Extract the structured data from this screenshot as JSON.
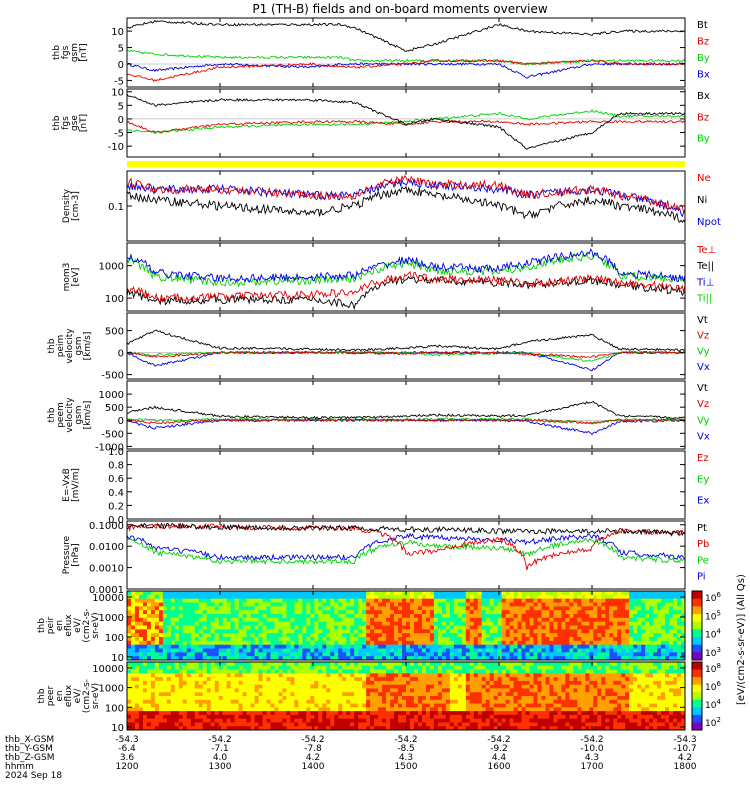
{
  "title": "P1 (TH-B) fields and on-board moments overview",
  "colors": {
    "black": "#000000",
    "red": "#e00000",
    "green": "#00d000",
    "blue": "#0000e0",
    "yellow": "#ffff00",
    "frame": "#000000"
  },
  "x_axis": {
    "ticks": [
      "1200",
      "1300",
      "1400",
      "1500",
      "1600",
      "1700",
      "1800"
    ],
    "rows": [
      {
        "label": "thb_X-GSM",
        "values": [
          "-54.3",
          "-54.2",
          "-54.2",
          "-54.2",
          "-54.2",
          "-54.2",
          "-54.3"
        ]
      },
      {
        "label": "thb_Y-GSM",
        "values": [
          "-6.4",
          "-7.1",
          "-7.8",
          "-8.5",
          "-9.2",
          "-10.0",
          "-10.7"
        ]
      },
      {
        "label": "thb_Z-GSM",
        "values": [
          "3.6",
          "4.0",
          "4.2",
          "4.3",
          "4.4",
          "4.3",
          "4.2"
        ]
      },
      {
        "label": "hhmm",
        "values": [
          "1200",
          "1300",
          "1400",
          "1500",
          "1600",
          "1700",
          "1800"
        ]
      }
    ],
    "date": "2024 Sep 18"
  },
  "chart_data": [
    {
      "type": "line",
      "ylabel": [
        "thb",
        "fgs",
        "gsm",
        "[nT]"
      ],
      "ylim": [
        -7,
        14
      ],
      "yticks": [
        "10",
        "5",
        "0",
        "-5"
      ],
      "legend": [
        {
          "name": "Bt",
          "color": "#000000"
        },
        {
          "name": "Bz",
          "color": "#e00000"
        },
        {
          "name": "By",
          "color": "#00d000"
        },
        {
          "name": "Bx",
          "color": "#0000e0"
        }
      ],
      "x": [
        1200,
        1230,
        1300,
        1400,
        1430,
        1445,
        1500,
        1530,
        1600,
        1630,
        1700,
        1730,
        1800
      ],
      "series": [
        {
          "name": "Bt",
          "values": [
            11,
            13,
            12,
            12,
            12,
            11,
            4,
            6,
            12,
            10,
            9,
            10,
            10
          ]
        },
        {
          "name": "Bz",
          "values": [
            -3,
            -5,
            -1,
            0,
            -1,
            -1,
            0,
            1,
            1,
            0,
            1,
            0,
            0
          ]
        },
        {
          "name": "By",
          "values": [
            4,
            3,
            2,
            2,
            2,
            1,
            1,
            1,
            1,
            0,
            1,
            1,
            1
          ]
        },
        {
          "name": "Bx",
          "values": [
            0,
            -2,
            0,
            -1,
            0,
            0,
            0,
            0,
            0,
            -4,
            0,
            0,
            0
          ]
        }
      ]
    },
    {
      "type": "line",
      "ylabel": [
        "thb",
        "fgs",
        "gse",
        "[nT]"
      ],
      "ylim": [
        -14,
        11
      ],
      "yticks": [
        "10",
        "5",
        "0",
        "-5",
        "-10"
      ],
      "legend": [
        {
          "name": "Bx",
          "color": "#000000"
        },
        {
          "name": "Bz",
          "color": "#e00000"
        },
        {
          "name": "By",
          "color": "#00d000"
        }
      ],
      "x": [
        1200,
        1230,
        1300,
        1400,
        1445,
        1500,
        1530,
        1600,
        1630,
        1700,
        1730,
        1800
      ],
      "series": [
        {
          "name": "Bx",
          "values": [
            9,
            5,
            7,
            7,
            6,
            -2,
            0,
            -3,
            -11,
            -5,
            2,
            2
          ]
        },
        {
          "name": "Bz",
          "values": [
            -1,
            -5,
            -2,
            -1,
            -1,
            -2,
            -1,
            -1,
            -2,
            -1,
            -1,
            -1
          ]
        },
        {
          "name": "By",
          "values": [
            -4,
            -5,
            -3,
            -2,
            -2,
            -1,
            0,
            2,
            0,
            3,
            1,
            1
          ]
        }
      ]
    },
    {
      "type": "line",
      "ylabel": [
        "Density",
        "[cm-3]"
      ],
      "yscale": "log",
      "ylim": [
        0.01,
        1
      ],
      "yticks": [
        "0.1"
      ],
      "legend": [
        {
          "name": "Ne",
          "color": "#e00000"
        },
        {
          "name": "Ni",
          "color": "#000000"
        },
        {
          "name": "Npot",
          "color": "#0000e0"
        }
      ],
      "x": [
        1200,
        1230,
        1300,
        1400,
        1445,
        1500,
        1530,
        1600,
        1630,
        1700,
        1730,
        1800
      ],
      "series": [
        {
          "name": "Ne",
          "values": [
            0.5,
            0.3,
            0.3,
            0.2,
            0.2,
            0.6,
            0.4,
            0.4,
            0.2,
            0.3,
            0.2,
            0.08
          ]
        },
        {
          "name": "Ni",
          "values": [
            0.2,
            0.15,
            0.1,
            0.06,
            0.1,
            0.3,
            0.2,
            0.1,
            0.05,
            0.15,
            0.1,
            0.04
          ]
        },
        {
          "name": "Npot",
          "values": [
            0.4,
            0.3,
            0.3,
            0.2,
            0.2,
            0.5,
            0.4,
            0.3,
            0.2,
            0.3,
            0.2,
            0.06
          ]
        }
      ]
    },
    {
      "type": "line",
      "ylabel": [
        "mom3",
        "[eV]"
      ],
      "yscale": "log",
      "ylim": [
        40,
        5000
      ],
      "yticks": [
        "1000",
        "100"
      ],
      "legend": [
        {
          "name": "Te⊥",
          "color": "#e00000"
        },
        {
          "name": "Te||",
          "color": "#000000"
        },
        {
          "name": "Ti⊥",
          "color": "#0000e0"
        },
        {
          "name": "Ti||",
          "color": "#00d000"
        }
      ],
      "x": [
        1200,
        1230,
        1300,
        1400,
        1445,
        1500,
        1530,
        1600,
        1630,
        1700,
        1730,
        1800
      ],
      "series": [
        {
          "name": "Te⊥",
          "values": [
            200,
            100,
            110,
            130,
            150,
            500,
            400,
            350,
            280,
            400,
            300,
            200
          ]
        },
        {
          "name": "Te||",
          "values": [
            150,
            80,
            90,
            90,
            60,
            400,
            350,
            300,
            250,
            350,
            250,
            150
          ]
        },
        {
          "name": "Ti⊥",
          "values": [
            2000,
            600,
            400,
            450,
            500,
            1500,
            900,
            800,
            1200,
            2500,
            600,
            400
          ]
        },
        {
          "name": "Ti||",
          "values": [
            1500,
            450,
            300,
            350,
            400,
            1200,
            700,
            650,
            900,
            2000,
            500,
            350
          ]
        }
      ]
    },
    {
      "type": "line",
      "ylabel": [
        "thb",
        "peim",
        "velocity",
        "gsm",
        "[km/s]"
      ],
      "ylim": [
        -600,
        900
      ],
      "yticks": [
        "500",
        "0",
        "-500"
      ],
      "legend": [
        {
          "name": "Vt",
          "color": "#000000"
        },
        {
          "name": "Vz",
          "color": "#e00000"
        },
        {
          "name": "Vy",
          "color": "#00d000"
        },
        {
          "name": "Vx",
          "color": "#0000e0"
        }
      ],
      "x": [
        1200,
        1230,
        1300,
        1400,
        1445,
        1500,
        1530,
        1600,
        1630,
        1700,
        1730,
        1800
      ],
      "series": [
        {
          "name": "Vt",
          "values": [
            200,
            500,
            100,
            80,
            60,
            100,
            150,
            80,
            250,
            400,
            80,
            60
          ]
        },
        {
          "name": "Vz",
          "values": [
            0,
            -100,
            0,
            0,
            0,
            -20,
            0,
            0,
            -30,
            -100,
            0,
            0
          ]
        },
        {
          "name": "Vy",
          "values": [
            0,
            -50,
            0,
            0,
            0,
            0,
            -50,
            -20,
            0,
            -200,
            0,
            0
          ]
        },
        {
          "name": "Vx",
          "values": [
            0,
            -300,
            0,
            0,
            0,
            0,
            0,
            0,
            0,
            -400,
            0,
            0
          ]
        }
      ]
    },
    {
      "type": "line",
      "ylabel": [
        "thb",
        "peem",
        "velocity",
        "gsm",
        "[km/s]"
      ],
      "ylim": [
        -1100,
        1500
      ],
      "yticks": [
        "1000",
        "500",
        "0",
        "-500",
        "-1000"
      ],
      "legend": [
        {
          "name": "Vt",
          "color": "#000000"
        },
        {
          "name": "Vz",
          "color": "#e00000"
        },
        {
          "name": "Vy",
          "color": "#00d000"
        },
        {
          "name": "Vx",
          "color": "#0000e0"
        }
      ],
      "x": [
        1200,
        1230,
        1300,
        1400,
        1445,
        1500,
        1530,
        1600,
        1630,
        1700,
        1730,
        1800
      ],
      "series": [
        {
          "name": "Vt",
          "values": [
            300,
            500,
            150,
            100,
            100,
            150,
            200,
            150,
            200,
            700,
            150,
            100
          ]
        },
        {
          "name": "Vz",
          "values": [
            0,
            -100,
            0,
            0,
            0,
            0,
            0,
            0,
            0,
            -100,
            0,
            0
          ]
        },
        {
          "name": "Vy",
          "values": [
            50,
            0,
            30,
            30,
            20,
            30,
            50,
            30,
            40,
            -100,
            30,
            20
          ]
        },
        {
          "name": "Vx",
          "values": [
            -50,
            -300,
            0,
            0,
            0,
            0,
            0,
            0,
            -50,
            -500,
            -50,
            0
          ]
        }
      ]
    },
    {
      "type": "line",
      "ylabel": [
        "E=-VxB",
        "[mV/m]"
      ],
      "ylim": [
        0,
        1
      ],
      "yticks": [
        "1.0",
        "0.8",
        "0.6",
        "0.4",
        "0.2",
        "0.0"
      ],
      "legend": [
        {
          "name": "Ez",
          "color": "#e00000"
        },
        {
          "name": "Ey",
          "color": "#00d000"
        },
        {
          "name": "Ex",
          "color": "#0000e0"
        }
      ],
      "x": [],
      "series": []
    },
    {
      "type": "line",
      "ylabel": [
        "Pressure",
        "[nPa]"
      ],
      "yscale": "log",
      "ylim": [
        0.0001,
        0.15
      ],
      "yticks": [
        "0.1000",
        "0.0100",
        "0.0010",
        "0.0001"
      ],
      "legend": [
        {
          "name": "Pt",
          "color": "#000000"
        },
        {
          "name": "Pb",
          "color": "#e00000"
        },
        {
          "name": "Pe",
          "color": "#00d000"
        },
        {
          "name": "Pi",
          "color": "#0000e0"
        }
      ],
      "x": [
        1200,
        1230,
        1300,
        1400,
        1445,
        1500,
        1530,
        1600,
        1630,
        1700,
        1730,
        1800
      ],
      "series": [
        {
          "name": "Pt",
          "values": [
            0.08,
            0.09,
            0.08,
            0.07,
            0.07,
            0.06,
            0.06,
            0.05,
            0.05,
            0.05,
            0.05,
            0.04
          ]
        },
        {
          "name": "Pb",
          "values": [
            0.07,
            0.09,
            0.08,
            0.07,
            0.07,
            0.004,
            0.006,
            0.02,
            0.001,
            0.008,
            0.05,
            0.04
          ]
        },
        {
          "name": "Pe",
          "values": [
            0.02,
            0.005,
            0.002,
            0.002,
            0.002,
            0.015,
            0.01,
            0.008,
            0.004,
            0.02,
            0.003,
            0.002
          ]
        },
        {
          "name": "Pi",
          "values": [
            0.03,
            0.008,
            0.003,
            0.003,
            0.003,
            0.03,
            0.025,
            0.02,
            0.015,
            0.03,
            0.005,
            0.003
          ]
        }
      ]
    },
    {
      "type": "heatmap",
      "ylabel": [
        "thb",
        "peir",
        "en",
        "eflux",
        "eV/",
        "(cm2-s-",
        "sr-eV)"
      ],
      "yscale": "log",
      "ylim": [
        7,
        20000
      ],
      "yticks": [
        "10000",
        "1000",
        "100",
        "10"
      ],
      "colorbar": {
        "ticks": [
          "10^6",
          "10^5",
          "10^4",
          "10^3"
        ],
        "label": "[eV/(cm2-s-sr-eV)] (All Qs)"
      }
    },
    {
      "type": "heatmap",
      "ylabel": [
        "thb",
        "peer",
        "en",
        "eflux",
        "eV/",
        "(cm2-s-",
        "sr-eV)"
      ],
      "yscale": "log",
      "ylim": [
        7,
        20000
      ],
      "yticks": [
        "10000",
        "1000",
        "100",
        "10"
      ],
      "colorbar": {
        "ticks": [
          "10^8",
          "10^6",
          "10^4",
          "10^2"
        ]
      }
    }
  ]
}
